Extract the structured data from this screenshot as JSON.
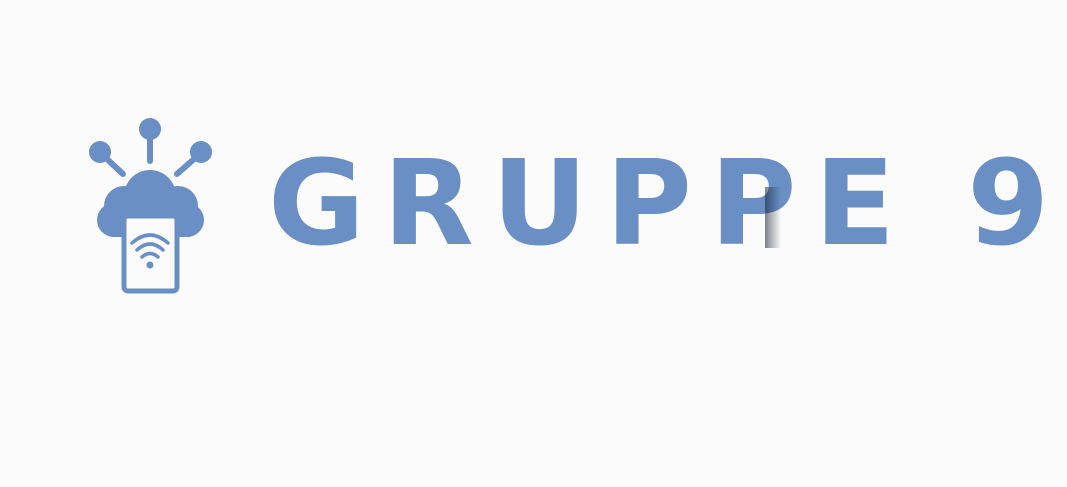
{
  "logo": {
    "icon": "cloud-tablet-wifi-icon",
    "brand_word": "GRUPPE",
    "brand_number": "9",
    "color": "#6a8fc5"
  }
}
